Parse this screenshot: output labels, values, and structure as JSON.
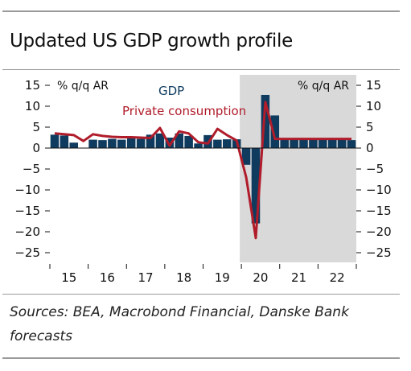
{
  "title": "Updated US GDP growth profile",
  "source": "Sources: BEA, Macrobond Financial, Danske Bank forecasts",
  "colors": {
    "gdp": "#0f3b5e",
    "consumption": "#b01c2a",
    "forecast_shade": "#d9d9d9"
  },
  "chart_data": {
    "type": "bar",
    "title": "",
    "ylabel_left": "% q/q AR",
    "ylabel_right": "% q/q AR",
    "ylim": [
      -27,
      15
    ],
    "yticks": [
      15,
      10,
      5,
      0,
      -5,
      -10,
      -15,
      -20,
      -25
    ],
    "year_labels": [
      "15",
      "16",
      "17",
      "18",
      "19",
      "20",
      "21",
      "22"
    ],
    "forecast_from": "2020 Q1",
    "categories": [
      "2015Q1",
      "2015Q2",
      "2015Q3",
      "2015Q4",
      "2016Q1",
      "2016Q2",
      "2016Q3",
      "2016Q4",
      "2017Q1",
      "2017Q2",
      "2017Q3",
      "2017Q4",
      "2018Q1",
      "2018Q2",
      "2018Q3",
      "2018Q4",
      "2019Q1",
      "2019Q2",
      "2019Q3",
      "2019Q4",
      "2020Q1",
      "2020Q2",
      "2020Q3",
      "2020Q4",
      "2021Q1",
      "2021Q2",
      "2021Q3",
      "2021Q4",
      "2022Q1",
      "2022Q2",
      "2022Q3",
      "2022Q4"
    ],
    "series": [
      {
        "name": "GDP",
        "kind": "bar",
        "values": [
          3.2,
          3.0,
          1.3,
          0.1,
          2.0,
          1.9,
          2.2,
          2.0,
          2.3,
          2.2,
          3.2,
          3.5,
          2.5,
          3.5,
          2.9,
          1.1,
          3.1,
          2.0,
          2.1,
          2.1,
          -4.0,
          -18.0,
          12.7,
          7.8,
          2.0,
          2.0,
          2.0,
          2.0,
          2.0,
          2.0,
          2.0,
          1.9
        ]
      },
      {
        "name": "Private consumption",
        "kind": "line",
        "values": [
          3.5,
          3.3,
          3.1,
          1.7,
          3.3,
          2.9,
          2.7,
          2.6,
          2.6,
          2.5,
          2.4,
          4.8,
          0.6,
          4.0,
          3.5,
          1.4,
          1.1,
          4.6,
          3.1,
          1.8,
          -7.0,
          -21.5,
          11.0,
          2.2,
          2.2,
          2.2,
          2.2,
          2.2,
          2.2,
          2.2,
          2.2,
          2.2
        ]
      }
    ],
    "grid": false
  }
}
